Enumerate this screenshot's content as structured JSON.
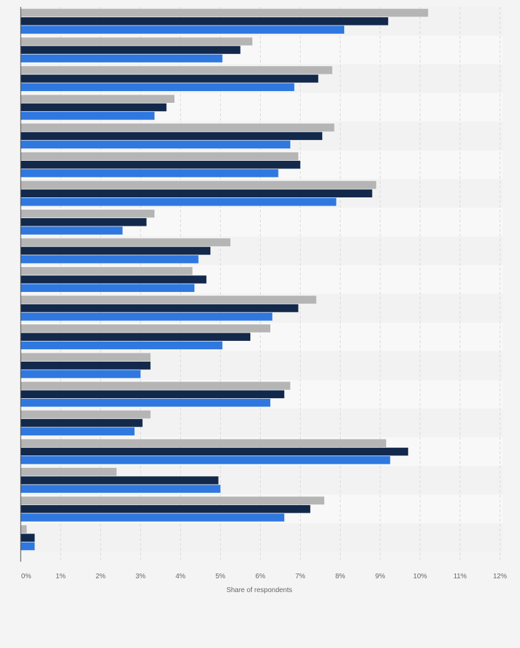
{
  "chart_data": {
    "type": "bar",
    "orientation": "horizontal",
    "xlabel": "Share of respondents",
    "ylabel": "",
    "xlim": [
      0,
      12
    ],
    "x_ticks": [
      "0%",
      "1%",
      "2%",
      "3%",
      "4%",
      "5%",
      "6%",
      "7%",
      "8%",
      "9%",
      "10%",
      "11%",
      "12%"
    ],
    "grid": "vertical dashed",
    "legend": "none",
    "category_count": 19,
    "series_colors": [
      "#b5b5b5",
      "#13294b",
      "#2f78e0"
    ],
    "series": [
      {
        "values": [
          10.2,
          5.8,
          7.8,
          3.85,
          7.85,
          6.95,
          8.9,
          3.35,
          5.25,
          4.3,
          7.4,
          6.25,
          3.25,
          6.75,
          3.25,
          9.15,
          2.4,
          7.6,
          0.15
        ]
      },
      {
        "values": [
          9.2,
          5.5,
          7.45,
          3.65,
          7.55,
          7.0,
          8.8,
          3.15,
          4.75,
          4.65,
          6.95,
          5.75,
          3.25,
          6.6,
          3.05,
          9.7,
          4.95,
          7.25,
          0.35
        ]
      },
      {
        "values": [
          8.1,
          5.05,
          6.85,
          3.35,
          6.75,
          6.45,
          7.9,
          2.55,
          4.45,
          4.35,
          6.3,
          5.05,
          3.0,
          6.25,
          2.85,
          9.25,
          5.0,
          6.6,
          0.35
        ]
      }
    ]
  }
}
